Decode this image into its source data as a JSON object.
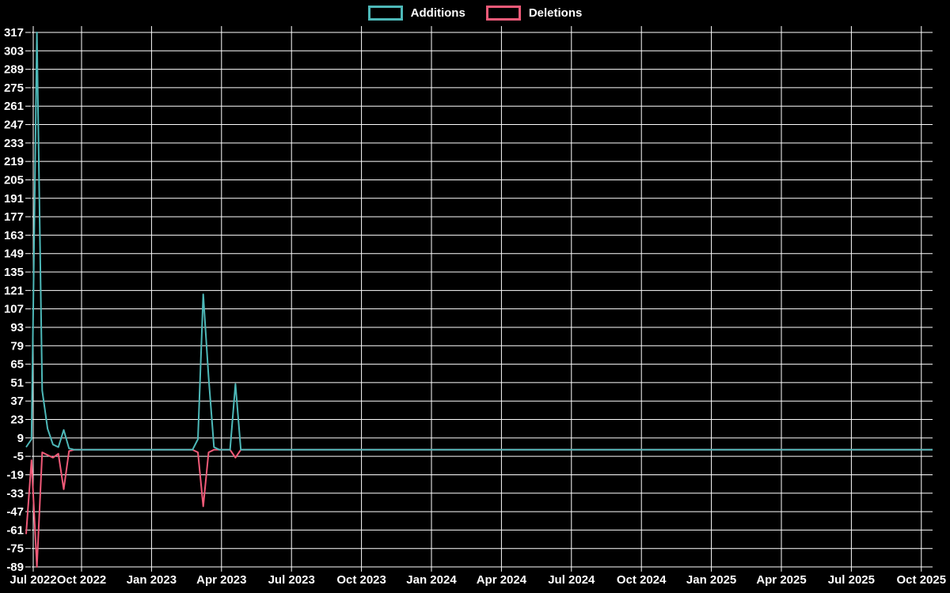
{
  "page": {
    "background_color": "#000000",
    "grid_color": "#ffffff",
    "text_color": "#ffffff"
  },
  "legend": {
    "items": [
      {
        "label": "Additions",
        "color": "#4db8b8"
      },
      {
        "label": "Deletions",
        "color": "#f05a78"
      }
    ]
  },
  "chart_data": {
    "type": "line",
    "title": "",
    "xlabel": "",
    "ylabel": "",
    "legend_position": "top-center",
    "grid": "on",
    "background": "#000000",
    "cadence": "weekly",
    "weeks_total": 170,
    "x_axis": {
      "tick_labels": [
        "Jul 2022",
        "Oct 2022",
        "Jan 2023",
        "Apr 2023",
        "Jul 2023",
        "Oct 2023",
        "Jan 2024",
        "Apr 2024",
        "Jul 2024",
        "Oct 2024",
        "Jan 2025",
        "Apr 2025",
        "Jul 2025",
        "Oct 2025"
      ]
    },
    "y_axis": {
      "min": -89,
      "max": 317,
      "step": 14,
      "tick_labels": [
        317,
        303,
        289,
        275,
        261,
        247,
        233,
        219,
        205,
        191,
        177,
        163,
        149,
        135,
        121,
        107,
        93,
        79,
        65,
        51,
        37,
        23,
        9,
        -5,
        -19,
        -33,
        -47,
        -61,
        -75,
        -89
      ]
    },
    "series": [
      {
        "name": "Additions",
        "color": "#4db8b8",
        "baseline_value": 0,
        "nonzero_points": [
          {
            "week": 0,
            "value": 2
          },
          {
            "week": 1,
            "value": 8
          },
          {
            "week": 2,
            "value": 317
          },
          {
            "week": 3,
            "value": 45
          },
          {
            "week": 4,
            "value": 16
          },
          {
            "week": 5,
            "value": 4
          },
          {
            "week": 6,
            "value": 2
          },
          {
            "week": 7,
            "value": 15
          },
          {
            "week": 8,
            "value": 1
          },
          {
            "week": 32,
            "value": 8
          },
          {
            "week": 33,
            "value": 118
          },
          {
            "week": 34,
            "value": 55
          },
          {
            "week": 35,
            "value": 2
          },
          {
            "week": 39,
            "value": 50
          }
        ]
      },
      {
        "name": "Deletions",
        "color": "#f05a78",
        "baseline_value": 0,
        "nonzero_points": [
          {
            "week": 0,
            "value": -64
          },
          {
            "week": 1,
            "value": -8
          },
          {
            "week": 2,
            "value": -89
          },
          {
            "week": 3,
            "value": -2
          },
          {
            "week": 4,
            "value": -4
          },
          {
            "week": 5,
            "value": -6
          },
          {
            "week": 6,
            "value": -3
          },
          {
            "week": 7,
            "value": -30
          },
          {
            "week": 8,
            "value": -1
          },
          {
            "week": 32,
            "value": -2
          },
          {
            "week": 33,
            "value": -43
          },
          {
            "week": 34,
            "value": -2
          },
          {
            "week": 39,
            "value": -6
          }
        ]
      }
    ]
  }
}
